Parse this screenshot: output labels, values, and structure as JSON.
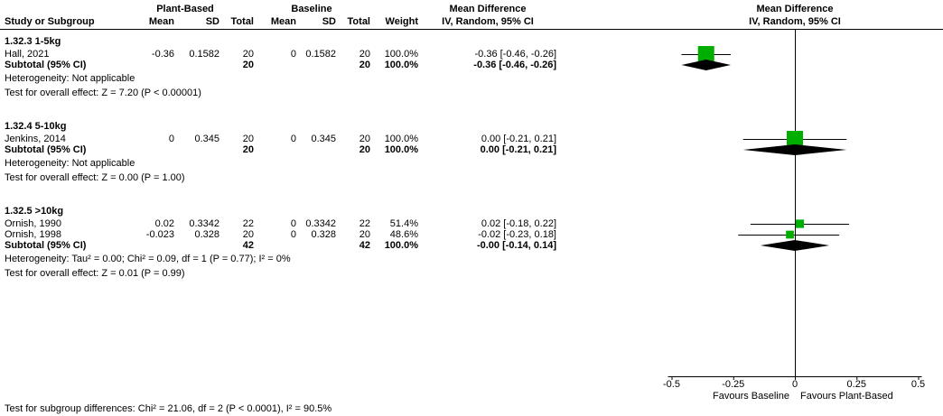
{
  "header": {
    "group_plant": "Plant-Based",
    "group_baseline": "Baseline",
    "mean_difference_left": "Mean Difference",
    "mean_difference_right": "Mean Difference",
    "study": "Study or Subgroup",
    "mean": "Mean",
    "sd": "SD",
    "total": "Total",
    "weight": "Weight",
    "ci_left": "IV, Random, 95% CI",
    "ci_right": "IV, Random, 95% CI"
  },
  "colors": {
    "square": "#00AE00",
    "diamond": "#000000",
    "line": "#000000",
    "text": "#000000",
    "background": "#FFFFFF"
  },
  "chart_data": {
    "type": "forest",
    "effect_measure": "Mean Difference",
    "model": "IV, Random, 95% CI",
    "x_axis": {
      "min": -0.5,
      "max": 0.5,
      "ticks": [
        -0.5,
        -0.25,
        0,
        0.25,
        0.5
      ],
      "tick_labels": [
        "-0.5",
        "-0.25",
        "0",
        "0.25",
        "0.5"
      ],
      "left_label": "Favours Baseline",
      "right_label": "Favours Plant-Based"
    },
    "groups": [
      {
        "title": "1.32.3 1-5kg",
        "studies": [
          {
            "name": "Hall, 2021",
            "mean1": "-0.36",
            "sd1": "0.1582",
            "total1": "20",
            "mean2": "0",
            "sd2": "0.1582",
            "total2": "20",
            "weight": "100.0%",
            "weight_pct": 100.0,
            "ci_text": "-0.36 [-0.46, -0.26]",
            "est": -0.36,
            "lo": -0.46,
            "hi": -0.26
          }
        ],
        "subtotal": {
          "label": "Subtotal (95% CI)",
          "total1": "20",
          "total2": "20",
          "weight": "100.0%",
          "ci_text": "-0.36 [-0.46, -0.26]",
          "est": -0.36,
          "lo": -0.46,
          "hi": -0.26
        },
        "heterogeneity": "Heterogeneity: Not applicable",
        "overall_effect": "Test for overall effect: Z = 7.20 (P < 0.00001)"
      },
      {
        "title": "1.32.4 5-10kg",
        "studies": [
          {
            "name": "Jenkins, 2014",
            "mean1": "0",
            "sd1": "0.345",
            "total1": "20",
            "mean2": "0",
            "sd2": "0.345",
            "total2": "20",
            "weight": "100.0%",
            "weight_pct": 100.0,
            "ci_text": "0.00 [-0.21, 0.21]",
            "est": 0.0,
            "lo": -0.21,
            "hi": 0.21
          }
        ],
        "subtotal": {
          "label": "Subtotal (95% CI)",
          "total1": "20",
          "total2": "20",
          "weight": "100.0%",
          "ci_text": "0.00 [-0.21, 0.21]",
          "est": 0.0,
          "lo": -0.21,
          "hi": 0.21
        },
        "heterogeneity": "Heterogeneity: Not applicable",
        "overall_effect": "Test for overall effect: Z = 0.00 (P = 1.00)"
      },
      {
        "title": "1.32.5 >10kg",
        "studies": [
          {
            "name": "Ornish, 1990",
            "mean1": "0.02",
            "sd1": "0.3342",
            "total1": "22",
            "mean2": "0",
            "sd2": "0.3342",
            "total2": "22",
            "weight": "51.4%",
            "weight_pct": 51.4,
            "ci_text": "0.02 [-0.18, 0.22]",
            "est": 0.02,
            "lo": -0.18,
            "hi": 0.22
          },
          {
            "name": "Ornish, 1998",
            "mean1": "-0.023",
            "sd1": "0.328",
            "total1": "20",
            "mean2": "0",
            "sd2": "0.328",
            "total2": "20",
            "weight": "48.6%",
            "weight_pct": 48.6,
            "ci_text": "-0.02 [-0.23, 0.18]",
            "est": -0.02,
            "lo": -0.23,
            "hi": 0.18
          }
        ],
        "subtotal": {
          "label": "Subtotal (95% CI)",
          "total1": "42",
          "total2": "42",
          "weight": "100.0%",
          "ci_text": "-0.00 [-0.14, 0.14]",
          "est": 0.0,
          "lo": -0.14,
          "hi": 0.14
        },
        "heterogeneity": "Heterogeneity: Tau² = 0.00; Chi² = 0.09, df = 1 (P = 0.77); I² = 0%",
        "overall_effect": "Test for overall effect: Z = 0.01 (P = 0.99)"
      }
    ],
    "footnote": "Test for subgroup differences: Chi² = 21.06, df = 2 (P < 0.0001), I² = 90.5%"
  }
}
